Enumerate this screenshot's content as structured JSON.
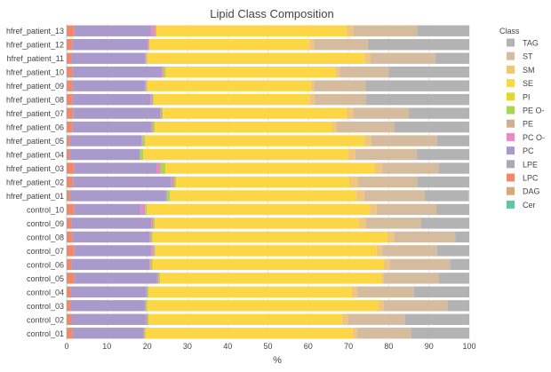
{
  "chart_data": {
    "type": "bar",
    "orientation": "horizontal",
    "barmode": "stack",
    "title": "Lipid Class Composition",
    "xlabel": "%",
    "ylabel": "",
    "xlim": [
      0,
      100
    ],
    "xticks": [
      0,
      10,
      20,
      30,
      40,
      50,
      60,
      70,
      80,
      90,
      100
    ],
    "legend_title": "Class",
    "legend_placement": "right",
    "categories": [
      "control_01",
      "control_02",
      "control_03",
      "control_04",
      "control_05",
      "control_06",
      "control_07",
      "control_08",
      "control_09",
      "control_10",
      "hfref_patient_01",
      "hfref_patient_02",
      "hfref_patient_03",
      "hfref_patient_04",
      "hfref_patient_05",
      "hfref_patient_06",
      "hfref_patient_07",
      "hfref_patient_08",
      "hfref_patient_09",
      "hfref_patient_10",
      "hfref_patient_11",
      "hfref_patient_12",
      "hfref_patient_13"
    ],
    "series": [
      {
        "name": "Cer",
        "color": "#66c2a5",
        "values": [
          0,
          0,
          0,
          0,
          0,
          0,
          0,
          0,
          0,
          0,
          0,
          0,
          0,
          0,
          0,
          0,
          0,
          0,
          0,
          0,
          0,
          0,
          0
        ]
      },
      {
        "name": "DAG",
        "color": "#d9a878",
        "values": [
          0,
          0,
          0,
          0,
          0,
          0,
          0,
          0,
          0,
          0,
          0,
          0,
          0,
          0,
          0,
          0,
          0,
          0,
          0,
          0,
          0,
          0,
          0
        ]
      },
      {
        "name": "LPC",
        "color": "#f0896a",
        "values": [
          1.5,
          1.2,
          1.0,
          1.0,
          1.8,
          1.2,
          1.8,
          1.4,
          1.2,
          1.8,
          0.8,
          1.6,
          1.8,
          0.8,
          0.8,
          1.4,
          1.6,
          1.4,
          1.5,
          1.5,
          1.2,
          1.5,
          1.8
        ]
      },
      {
        "name": "LPE",
        "color": "#aca6b6",
        "values": [
          0,
          0,
          0,
          0,
          0,
          0,
          0,
          0,
          0,
          0,
          0,
          0,
          0,
          0,
          0,
          0,
          0,
          0,
          0,
          0,
          0,
          0,
          0
        ]
      },
      {
        "name": "PC",
        "color": "#aa9acb",
        "values": [
          17.5,
          18.5,
          18.4,
          18.8,
          20.6,
          19.4,
          19.2,
          19.2,
          19.8,
          16.6,
          23.9,
          24.4,
          20.5,
          17.3,
          17.8,
          19.6,
          21.6,
          19.4,
          18.0,
          22.0,
          18.3,
          18.6,
          19.2
        ]
      },
      {
        "name": "PC O-",
        "color": "#e68bc3",
        "values": [
          0.3,
          0.4,
          0.3,
          0.2,
          0.4,
          0.3,
          0.6,
          0.4,
          0.5,
          1.1,
          0.3,
          0.7,
          1.0,
          0.2,
          0.3,
          0.4,
          0.4,
          0.5,
          0.3,
          0.5,
          0.3,
          0.3,
          1.0
        ]
      },
      {
        "name": "PE",
        "color": "#cdb090",
        "values": [
          0,
          0,
          0,
          0,
          0,
          0,
          0,
          0,
          0,
          0,
          0,
          0,
          0,
          0,
          0,
          0,
          0,
          0,
          0,
          0,
          0,
          0,
          0
        ]
      },
      {
        "name": "PE O-",
        "color": "#a9d456",
        "values": [
          0.3,
          0.3,
          0.3,
          0.3,
          0.4,
          0.4,
          0.4,
          0.3,
          0.4,
          0.4,
          0.6,
          0.5,
          1.2,
          0.7,
          0.6,
          0.5,
          0.3,
          0.3,
          0.2,
          0.6,
          0.2,
          0.2,
          0.3
        ]
      },
      {
        "name": "PI",
        "color": "#e3d634",
        "values": [
          0,
          0,
          0,
          0,
          0,
          0,
          0,
          0,
          0,
          0,
          0,
          0,
          0,
          0,
          0,
          0,
          0,
          0,
          0,
          0,
          0,
          0,
          0
        ]
      },
      {
        "name": "SE",
        "color": "#fcd644",
        "values": [
          51.4,
          48.0,
          57.3,
          50.4,
          55.0,
          57.5,
          55.0,
          58.4,
          50.7,
          55.4,
          46.3,
          43.0,
          52.1,
          51.0,
          54.5,
          43.9,
          45.6,
          38.7,
          40.7,
          42.1,
          54.0,
          39.7,
          47.2
        ]
      },
      {
        "name": "SM",
        "color": "#efc67c",
        "values": [
          1.2,
          1.4,
          1.5,
          1.5,
          0.6,
          1.4,
          1.4,
          1.6,
          1.7,
          1.7,
          2.0,
          2.2,
          1.8,
          1.7,
          1.7,
          1.3,
          1.8,
          1.3,
          0.7,
          1.1,
          1.5,
          1.1,
          1.8
        ]
      },
      {
        "name": "ST",
        "color": "#d6bc9e",
        "values": [
          13.3,
          14.3,
          15.9,
          14.1,
          13.7,
          15.0,
          13.6,
          15.2,
          13.7,
          14.8,
          15.0,
          14.8,
          14.1,
          15.3,
          16.3,
          14.2,
          13.7,
          12.8,
          12.8,
          12.2,
          16.1,
          13.4,
          15.9
        ]
      },
      {
        "name": "TAG",
        "color": "#b3b3b3",
        "values": [
          14.5,
          15.9,
          5.3,
          13.7,
          7.5,
          4.8,
          8.0,
          3.5,
          12.0,
          8.2,
          11.0,
          12.8,
          7.5,
          13.0,
          8.0,
          18.7,
          15.0,
          25.6,
          25.8,
          20.0,
          8.4,
          25.2,
          12.8
        ]
      }
    ],
    "legend_order": [
      "TAG",
      "ST",
      "SM",
      "SE",
      "PI",
      "PE O-",
      "PE",
      "PC O-",
      "PC",
      "LPE",
      "LPC",
      "DAG",
      "Cer"
    ]
  }
}
